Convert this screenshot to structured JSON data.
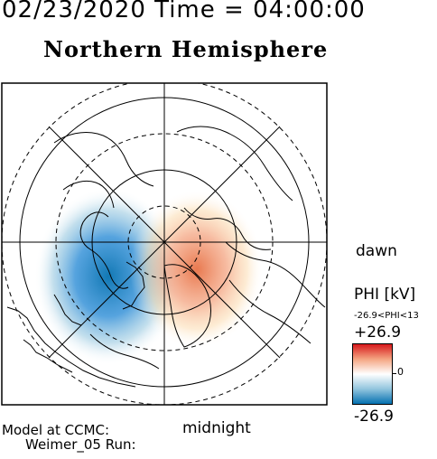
{
  "header": {
    "date_time": "02/23/2020 Time = 04:00:00",
    "title": "Northern Hemisphere"
  },
  "map": {
    "projection": "polar stereographic, north pole centered",
    "labels": {
      "right": "dawn",
      "bottom": "midnight"
    },
    "potential_pattern": {
      "negative_cell": {
        "color": "#0571b0",
        "side": "dusk / left"
      },
      "positive_cell": {
        "color": "#e34a33",
        "side": "dawn / right"
      }
    }
  },
  "legend": {
    "quantity": "PHI [kV]",
    "range_text": "-26.9<PHI<13",
    "max_label": "+26.9",
    "zero_label": "0",
    "min_label": "-26.9",
    "colors": [
      "#d7191c",
      "#f4a582",
      "#ffffff",
      "#92c5de",
      "#0571b0"
    ]
  },
  "credit": {
    "line1": "Model at CCMC:",
    "line2": "Weimer_05 Run:"
  }
}
